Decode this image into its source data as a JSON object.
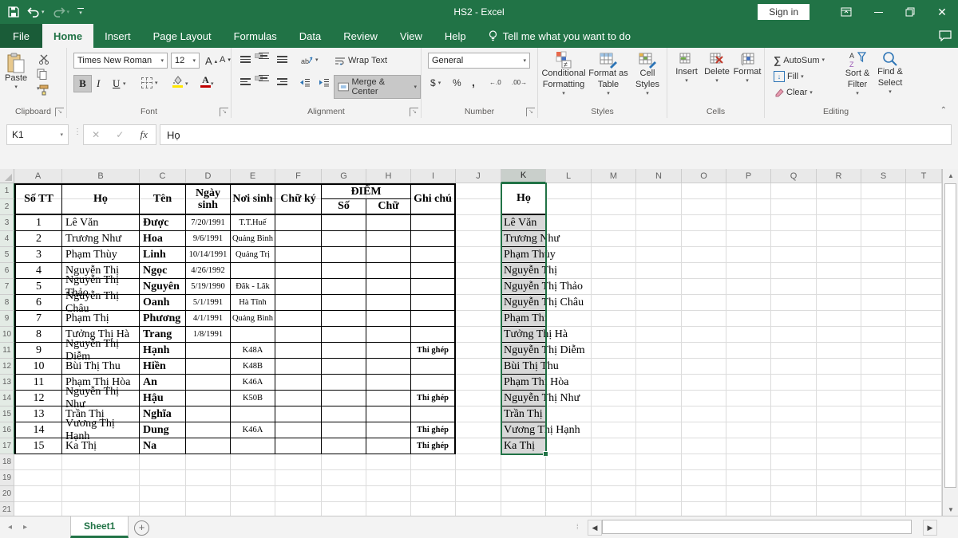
{
  "title_bar": {
    "title": "HS2 - Excel",
    "sign_in_label": "Sign in"
  },
  "tabs": {
    "file": "File",
    "home": "Home",
    "insert": "Insert",
    "page_layout": "Page Layout",
    "formulas": "Formulas",
    "data": "Data",
    "review": "Review",
    "view": "View",
    "help": "Help",
    "tell_me": "Tell me what you want to do"
  },
  "ribbon": {
    "clipboard": {
      "label": "Clipboard",
      "paste": "Paste"
    },
    "font": {
      "label": "Font",
      "name": "Times New Roman",
      "size": "12",
      "bold": "B",
      "italic": "I",
      "underline": "U"
    },
    "alignment": {
      "label": "Alignment",
      "wrap": "Wrap Text",
      "merge": "Merge & Center"
    },
    "number": {
      "label": "Number",
      "format": "General",
      "currency": "$",
      "percent": "%",
      "comma": ",",
      "inc_dec": "←.0",
      "dec_dec": ".00→"
    },
    "styles": {
      "label": "Styles",
      "conditional": "Conditional Formatting",
      "format_table": "Format as Table",
      "cell_styles": "Cell Styles"
    },
    "cells": {
      "label": "Cells",
      "insert": "Insert",
      "delete": "Delete",
      "format": "Format"
    },
    "editing": {
      "label": "Editing",
      "autosum": "AutoSum",
      "fill": "Fill",
      "clear": "Clear",
      "sort_filter": "Sort & Filter",
      "find_select": "Find & Select"
    }
  },
  "formula_bar": {
    "name_box": "K1",
    "fx": "fx",
    "formula": "Họ"
  },
  "sheet": {
    "columns": [
      "A",
      "B",
      "C",
      "D",
      "E",
      "F",
      "G",
      "H",
      "I",
      "J",
      "K",
      "L",
      "M",
      "N",
      "O",
      "P",
      "Q",
      "R",
      "S",
      "T"
    ],
    "selected_column": "K",
    "visible_rows": 21,
    "table_header": {
      "stt": "Số TT",
      "ho": "Họ",
      "ten": "Tên",
      "ngay_sinh": "Ngày sinh",
      "noi_sinh": "Nơi sinh",
      "chu_ky": "Chữ ký",
      "diem": "ĐIỂM",
      "diem_so": "Số",
      "diem_chu": "Chữ",
      "ghi_chu": "Ghi chú"
    },
    "rows": [
      {
        "stt": "1",
        "ho": "Lê Văn",
        "ten": "Được",
        "ngay_sinh": "7/20/1991",
        "noi_sinh": "T.T.Huế",
        "ghi_chu": ""
      },
      {
        "stt": "2",
        "ho": "Trương Như",
        "ten": "Hoa",
        "ngay_sinh": "9/6/1991",
        "noi_sinh": "Quảng Bình",
        "ghi_chu": ""
      },
      {
        "stt": "3",
        "ho": "Phạm Thùy",
        "ten": "Linh",
        "ngay_sinh": "10/14/1991",
        "noi_sinh": "Quảng Trị",
        "ghi_chu": ""
      },
      {
        "stt": "4",
        "ho": "Nguyễn Thị",
        "ten": "Ngọc",
        "ngay_sinh": "4/26/1992",
        "noi_sinh": "",
        "ghi_chu": ""
      },
      {
        "stt": "5",
        "ho": "Nguyễn Thị Thảo",
        "ten": "Nguyên",
        "ngay_sinh": "5/19/1990",
        "noi_sinh": "Đăk - Lăk",
        "ghi_chu": ""
      },
      {
        "stt": "6",
        "ho": "Nguyễn Thị Châu",
        "ten": "Oanh",
        "ngay_sinh": "5/1/1991",
        "noi_sinh": "Hà Tĩnh",
        "ghi_chu": ""
      },
      {
        "stt": "7",
        "ho": "Phạm Thị",
        "ten": "Phương",
        "ngay_sinh": "4/1/1991",
        "noi_sinh": "Quảng Bình",
        "ghi_chu": ""
      },
      {
        "stt": "8",
        "ho": "Tưởng Thị Hà",
        "ten": "Trang",
        "ngay_sinh": "1/8/1991",
        "noi_sinh": "",
        "ghi_chu": ""
      },
      {
        "stt": "9",
        "ho": "Nguyễn Thị Diễm",
        "ten": "Hạnh",
        "ngay_sinh": "",
        "noi_sinh": "K48A",
        "ghi_chu": "Thi ghép"
      },
      {
        "stt": "10",
        "ho": "Bùi Thị Thu",
        "ten": "Hiền",
        "ngay_sinh": "",
        "noi_sinh": "K48B",
        "ghi_chu": ""
      },
      {
        "stt": "11",
        "ho": "Phạm Thị Hòa",
        "ten": "An",
        "ngay_sinh": "",
        "noi_sinh": "K46A",
        "ghi_chu": ""
      },
      {
        "stt": "12",
        "ho": "Nguyễn Thị Như",
        "ten": "Hậu",
        "ngay_sinh": "",
        "noi_sinh": "K50B",
        "ghi_chu": "Thi ghép"
      },
      {
        "stt": "13",
        "ho": "Trần Thị",
        "ten": "Nghĩa",
        "ngay_sinh": "",
        "noi_sinh": "",
        "ghi_chu": ""
      },
      {
        "stt": "14",
        "ho": "Vương Thị Hạnh",
        "ten": "Dung",
        "ngay_sinh": "",
        "noi_sinh": "K46A",
        "ghi_chu": "Thi ghép"
      },
      {
        "stt": "15",
        "ho": "Ka Thị",
        "ten": "Na",
        "ngay_sinh": "",
        "noi_sinh": "",
        "ghi_chu": "Thi ghép"
      }
    ],
    "k_column": {
      "header": "Họ",
      "values": [
        "Lê Văn",
        "Trương Như",
        "Phạm Thùy",
        "Nguyễn Thị",
        "Nguyễn Thị Thảo",
        "Nguyễn Thị Châu",
        "Phạm Thị",
        "Tưởng Thị Hà",
        "Nguyễn Thị Diễm",
        "Bùi Thị Thu",
        "Phạm Thị Hòa",
        "Nguyễn Thị Như",
        "Trần Thị",
        "Vương Thị Hạnh",
        "Ka Thị"
      ]
    }
  },
  "sheet_bar": {
    "sheet_name": "Sheet1"
  },
  "colors": {
    "accent_green": "#217346",
    "selection_fill": "#d8d8d8",
    "fill_color_swatch": "#ffe600",
    "font_color_swatch": "#c00000"
  }
}
